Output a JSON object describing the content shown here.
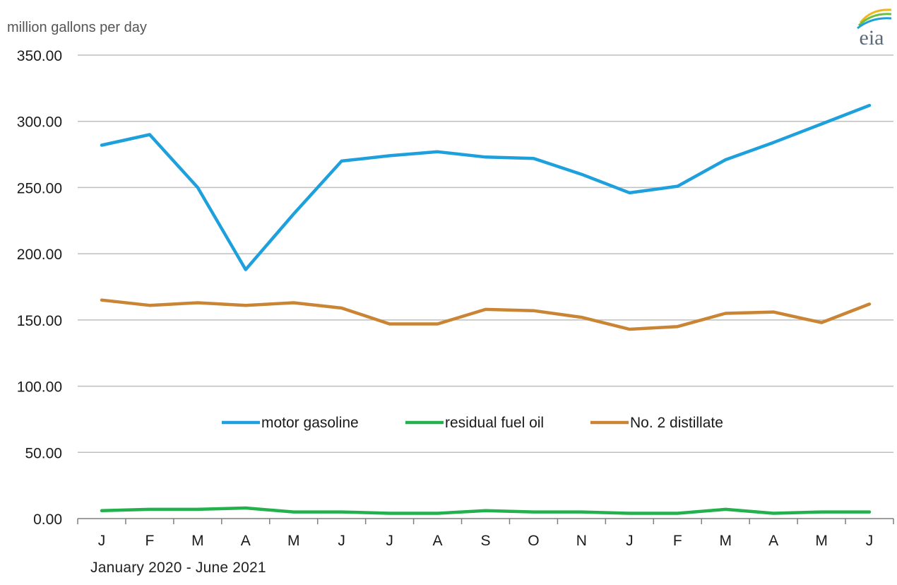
{
  "header": {
    "unit_label": "million gallons per day",
    "logo_text": "eia"
  },
  "footer": {
    "period_label": "January 2020  -  June 2021"
  },
  "colors": {
    "motor_gasoline": "#1ea0dc",
    "residual_fuel_oil": "#22b14c",
    "no2_distillate": "#c98534",
    "grid": "#bfbfbf",
    "axis": "#7f7f7f",
    "text": "#1a1a1a"
  },
  "chart_data": {
    "type": "line",
    "title": "",
    "xlabel": "",
    "ylabel": "million gallons per day",
    "categories": [
      "J",
      "F",
      "M",
      "A",
      "M",
      "J",
      "J",
      "A",
      "S",
      "O",
      "N",
      "J",
      "F",
      "M",
      "A",
      "M",
      "J"
    ],
    "ylim": [
      0,
      350
    ],
    "yticks": [
      "0.00",
      "50.00",
      "100.00",
      "150.00",
      "200.00",
      "250.00",
      "300.00",
      "350.00"
    ],
    "grid": true,
    "legend_position": "center",
    "series": [
      {
        "name": "motor gasoline",
        "color": "#1ea0dc",
        "values": [
          282,
          290,
          250,
          188,
          230,
          270,
          274,
          277,
          273,
          272,
          260,
          246,
          251,
          271,
          284,
          298,
          312
        ]
      },
      {
        "name": "residual fuel oil",
        "color": "#22b14c",
        "values": [
          6,
          7,
          7,
          8,
          5,
          5,
          4,
          4,
          6,
          5,
          5,
          4,
          4,
          7,
          4,
          5,
          5
        ]
      },
      {
        "name": "No. 2 distillate",
        "color": "#c98534",
        "values": [
          165,
          161,
          163,
          161,
          163,
          159,
          147,
          147,
          158,
          157,
          152,
          143,
          145,
          155,
          156,
          148,
          162
        ]
      }
    ]
  }
}
